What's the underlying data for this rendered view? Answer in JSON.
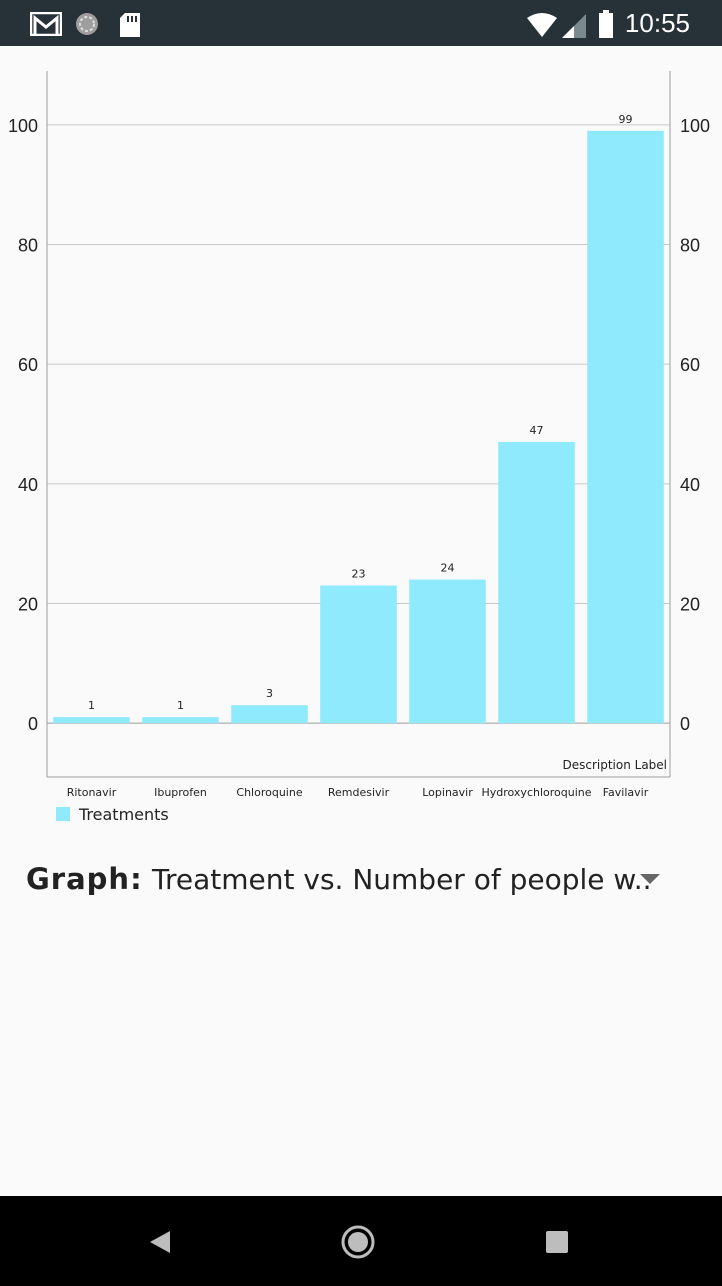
{
  "status_bar": {
    "time": "10:55",
    "icons": [
      "gmail-icon",
      "sync-icon",
      "sd-card-icon",
      "wifi-icon",
      "cell-signal-icon",
      "battery-icon"
    ]
  },
  "chart_data": {
    "type": "bar",
    "categories": [
      "Ritonavir",
      "Ibuprofen",
      "Chloroquine",
      "Remdesivir",
      "Lopinavir",
      "Hydroxychloroquine",
      "Favilavir"
    ],
    "series": [
      {
        "name": "Treatments",
        "values": [
          1,
          1,
          3,
          23,
          24,
          47,
          99
        ],
        "color": "#8eeafc"
      }
    ],
    "ylim": [
      -9,
      109
    ],
    "yticks": [
      0,
      20,
      40,
      60,
      80,
      100
    ],
    "description": "Description Label",
    "legend_position": "bottom-left",
    "grid": true
  },
  "graph_selector": {
    "label": "Graph:",
    "selected": "Treatment vs. Number of people w.."
  },
  "nav_bar": {
    "buttons": [
      "back-button",
      "home-button",
      "recents-button"
    ]
  }
}
